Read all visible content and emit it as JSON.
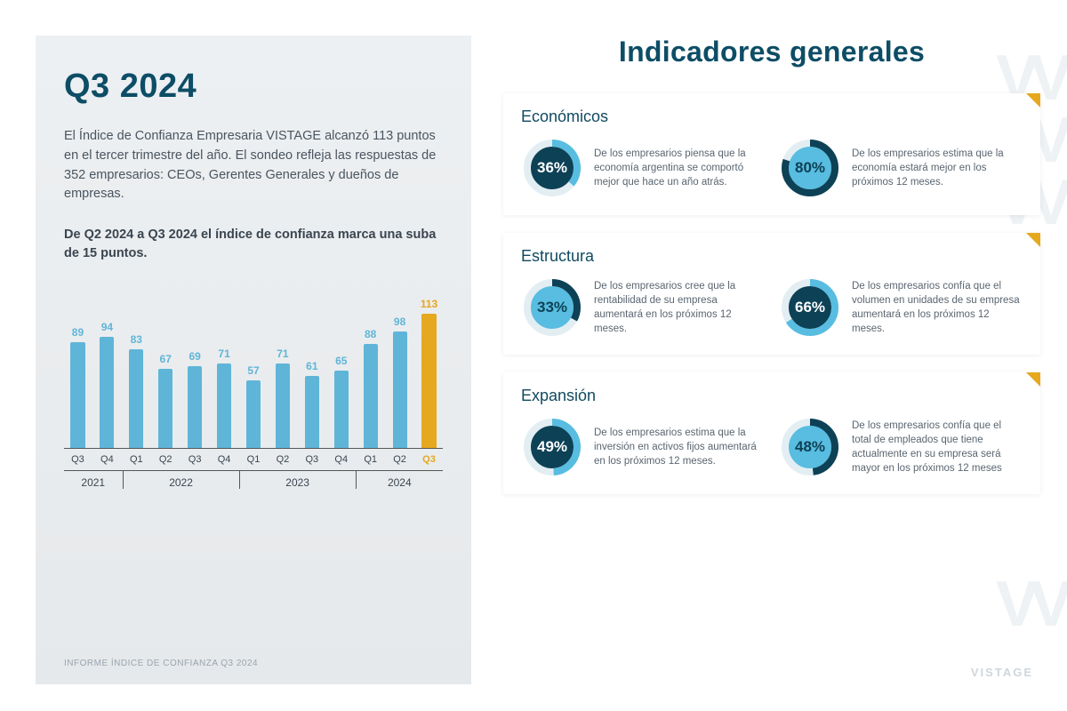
{
  "left": {
    "title": "Q3 2024",
    "paragraph": "El Índice de Confianza Empresaria VISTAGE alcanzó 113 puntos en el tercer trimestre del año. El sondeo refleja las respuestas de 352 empresarios: CEOs, Gerentes Generales y dueños de empresas.",
    "bold_line": "De Q2 2024 a Q3 2024 el índice de confianza marca una suba de 15 puntos.",
    "footer": "INFORME ÍNDICE DE CONFIANZA Q3 2024",
    "chart": {
      "type": "bar",
      "y_max": 120,
      "bar_color": "#5fb5d8",
      "bar_text_color": "#5fb5d8",
      "highlight_color": "#e5a81f",
      "axis_color": "#555555",
      "bars": [
        {
          "q": "Q3",
          "v": 89,
          "hl": false
        },
        {
          "q": "Q4",
          "v": 94,
          "hl": false
        },
        {
          "q": "Q1",
          "v": 83,
          "hl": false
        },
        {
          "q": "Q2",
          "v": 67,
          "hl": false
        },
        {
          "q": "Q3",
          "v": 69,
          "hl": false
        },
        {
          "q": "Q4",
          "v": 71,
          "hl": false
        },
        {
          "q": "Q1",
          "v": 57,
          "hl": false
        },
        {
          "q": "Q2",
          "v": 71,
          "hl": false
        },
        {
          "q": "Q3",
          "v": 61,
          "hl": false
        },
        {
          "q": "Q4",
          "v": 65,
          "hl": false
        },
        {
          "q": "Q1",
          "v": 88,
          "hl": false
        },
        {
          "q": "Q2",
          "v": 98,
          "hl": false
        },
        {
          "q": "Q3",
          "v": 113,
          "hl": true
        }
      ],
      "years": [
        {
          "label": "2021",
          "span": 2
        },
        {
          "label": "2022",
          "span": 4
        },
        {
          "label": "2023",
          "span": 4
        },
        {
          "label": "2024",
          "span": 3
        }
      ]
    }
  },
  "right": {
    "title": "Indicadores generales",
    "corner_color": "#e5a81f",
    "donut_track_color": "#e3eef3",
    "dark_fill": "#0d4156",
    "light_fill": "#58bde0",
    "cards": [
      {
        "title": "Económicos",
        "stats": [
          {
            "pct": 36,
            "variant": "dark",
            "text": "De los empresarios piensa que la economía argentina se comportó mejor que hace un año atrás."
          },
          {
            "pct": 80,
            "variant": "light",
            "text": "De los empresarios estima que la economía estará mejor en los próximos 12 meses."
          }
        ]
      },
      {
        "title": "Estructura",
        "stats": [
          {
            "pct": 33,
            "variant": "light",
            "text": "De los empresarios cree que la rentabilidad de su empresa aumentará en los próximos 12 meses."
          },
          {
            "pct": 66,
            "variant": "dark",
            "text": "De los empresarios confía que el volumen en unidades de su empresa aumentará en los próximos 12 meses."
          }
        ]
      },
      {
        "title": "Expansión",
        "stats": [
          {
            "pct": 49,
            "variant": "dark",
            "text": "De los empresarios estima que la inversión en activos fijos aumentará en los próximos 12 meses."
          },
          {
            "pct": 48,
            "variant": "light",
            "text": "De los empresarios confía que el total de empleados que tiene actualmente en su empresa será mayor en los próximos 12 meses"
          }
        ]
      }
    ],
    "brand": "VISTAGE"
  }
}
